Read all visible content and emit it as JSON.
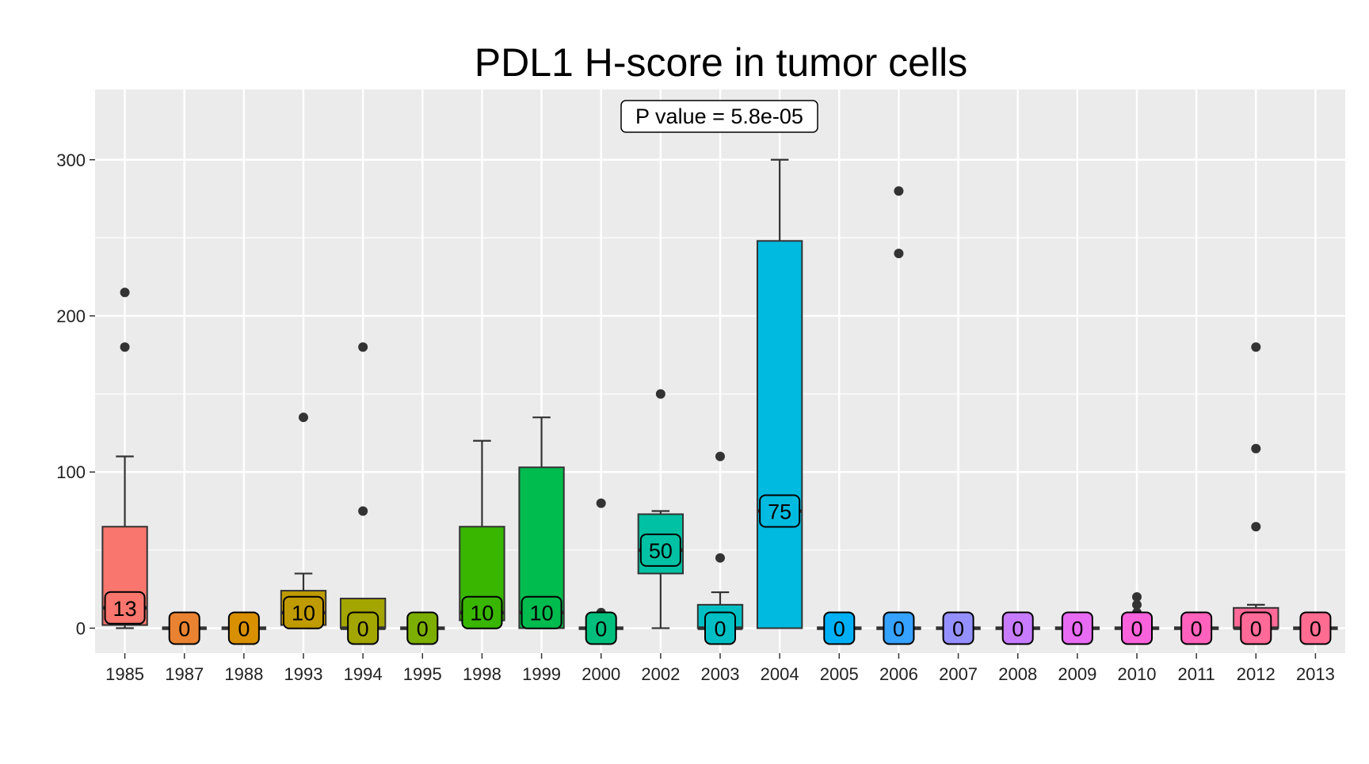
{
  "chart_data": {
    "type": "box",
    "title": "PDL1 H-score in tumor cells",
    "xlabel": "",
    "ylabel": "",
    "ylim": [
      -16,
      345
    ],
    "yticks": [
      0,
      100,
      200,
      300
    ],
    "grid": true,
    "legend": "none",
    "annotation": "P value = 5.8e-05",
    "categories": [
      "1985",
      "1987",
      "1988",
      "1993",
      "1994",
      "1995",
      "1998",
      "1999",
      "2000",
      "2002",
      "2003",
      "2004",
      "2005",
      "2006",
      "2007",
      "2008",
      "2009",
      "2010",
      "2011",
      "2012",
      "2013"
    ],
    "colors": [
      "#F8766D",
      "#EA8331",
      "#D89000",
      "#C09B00",
      "#A3A500",
      "#7CAE00",
      "#39B600",
      "#00BB4E",
      "#00BF7D",
      "#00C1A3",
      "#00BFC4",
      "#00BAE0",
      "#00B0F6",
      "#35A2FF",
      "#9590FF",
      "#C77CFF",
      "#E76BF3",
      "#FA62DB",
      "#FF62BC",
      "#FF6A98",
      "#FF6C91"
    ],
    "boxes": [
      {
        "q1": 2,
        "median": 13,
        "q3": 65,
        "whisker_low": 0,
        "whisker_high": 110,
        "outliers": [
          180,
          215
        ]
      },
      {
        "q1": 0,
        "median": 0,
        "q3": 0,
        "whisker_low": 0,
        "whisker_high": 0,
        "outliers": []
      },
      {
        "q1": 0,
        "median": 0,
        "q3": 0,
        "whisker_low": 0,
        "whisker_high": 0,
        "outliers": []
      },
      {
        "q1": 2,
        "median": 10,
        "q3": 24,
        "whisker_low": 2,
        "whisker_high": 35,
        "outliers": [
          135
        ]
      },
      {
        "q1": 0,
        "median": 0,
        "q3": 19,
        "whisker_low": 0,
        "whisker_high": 19,
        "outliers": [
          75,
          180
        ]
      },
      {
        "q1": 0,
        "median": 0,
        "q3": 0,
        "whisker_low": 0,
        "whisker_high": 0,
        "outliers": []
      },
      {
        "q1": 5,
        "median": 10,
        "q3": 65,
        "whisker_low": 5,
        "whisker_high": 120,
        "outliers": []
      },
      {
        "q1": 0,
        "median": 10,
        "q3": 103,
        "whisker_low": 0,
        "whisker_high": 135,
        "outliers": []
      },
      {
        "q1": 0,
        "median": 0,
        "q3": 0,
        "whisker_low": 0,
        "whisker_high": 0,
        "outliers": [
          10,
          80
        ]
      },
      {
        "q1": 35,
        "median": 50,
        "q3": 73,
        "whisker_low": 0,
        "whisker_high": 75,
        "outliers": [
          150
        ]
      },
      {
        "q1": 0,
        "median": 0,
        "q3": 15,
        "whisker_low": 0,
        "whisker_high": 23,
        "outliers": [
          45,
          110
        ]
      },
      {
        "q1": 0,
        "median": 75,
        "q3": 248,
        "whisker_low": 0,
        "whisker_high": 300,
        "outliers": []
      },
      {
        "q1": 0,
        "median": 0,
        "q3": 0,
        "whisker_low": 0,
        "whisker_high": 0,
        "outliers": []
      },
      {
        "q1": 0,
        "median": 0,
        "q3": 0,
        "whisker_low": 0,
        "whisker_high": 0,
        "outliers": [
          240,
          280
        ]
      },
      {
        "q1": 0,
        "median": 0,
        "q3": 0,
        "whisker_low": 0,
        "whisker_high": 0,
        "outliers": []
      },
      {
        "q1": 0,
        "median": 0,
        "q3": 0,
        "whisker_low": 0,
        "whisker_high": 0,
        "outliers": []
      },
      {
        "q1": 0,
        "median": 0,
        "q3": 0,
        "whisker_low": 0,
        "whisker_high": 0,
        "outliers": []
      },
      {
        "q1": 0,
        "median": 0,
        "q3": 0,
        "whisker_low": 0,
        "whisker_high": 0,
        "outliers": [
          10,
          15,
          20
        ]
      },
      {
        "q1": 0,
        "median": 0,
        "q3": 0,
        "whisker_low": 0,
        "whisker_high": 0,
        "outliers": []
      },
      {
        "q1": 0,
        "median": 0,
        "q3": 13,
        "whisker_low": 0,
        "whisker_high": 15,
        "outliers": [
          65,
          115,
          180
        ]
      },
      {
        "q1": 0,
        "median": 0,
        "q3": 0,
        "whisker_low": 0,
        "whisker_high": 0,
        "outliers": []
      }
    ],
    "median_labels": [
      "13",
      "0",
      "0",
      "10",
      "0",
      "0",
      "10",
      "10",
      "0",
      "50",
      "0",
      "75",
      "0",
      "0",
      "0",
      "0",
      "0",
      "0",
      "0",
      "0",
      "0"
    ]
  }
}
